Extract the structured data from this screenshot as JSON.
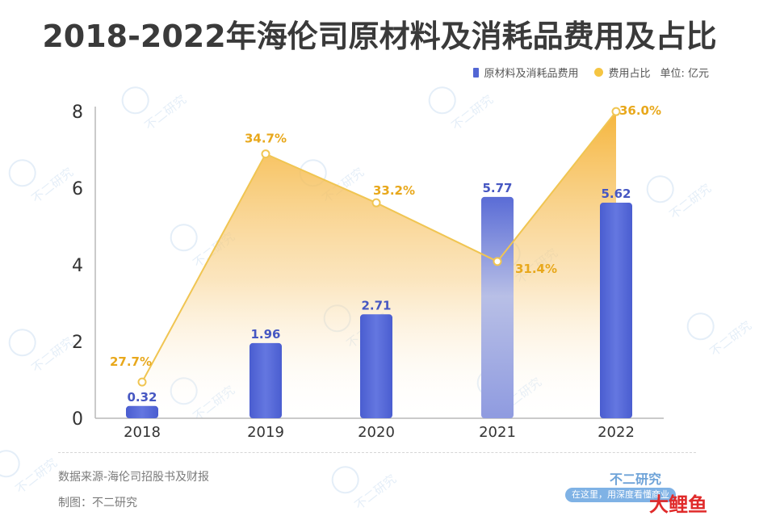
{
  "title": "2018-2022年海伦司原材料及消耗品费用及占比",
  "legend": {
    "bar_label": "原材料及消耗品费用",
    "line_label": "费用占比",
    "unit": "单位: 亿元"
  },
  "colors": {
    "bar": "#5266d4",
    "bar_light": "#aeb8ec",
    "line": "#f0c552",
    "area_top": "#f5b233",
    "pct_text": "#e8a81c",
    "value_text": "#4657c2",
    "axis_text": "#333333"
  },
  "chart_data": {
    "type": "bar",
    "categories": [
      "2018",
      "2019",
      "2020",
      "2021",
      "2022"
    ],
    "ylim": [
      0,
      8
    ],
    "yticks": [
      0,
      2,
      4,
      6,
      8
    ],
    "series": [
      {
        "name": "原材料及消耗品费用",
        "type": "bar",
        "values": [
          0.32,
          1.96,
          2.71,
          5.77,
          5.62
        ],
        "labels": [
          "0.32",
          "1.96",
          "2.71",
          "5.77",
          "5.62"
        ]
      },
      {
        "name": "费用占比",
        "type": "area",
        "values": [
          27.7,
          34.7,
          33.2,
          31.4,
          36.0
        ],
        "labels": [
          "27.7%",
          "34.7%",
          "33.2%",
          "31.4%",
          "36.0%"
        ]
      }
    ]
  },
  "footer": {
    "source": "数据来源-海伦司招股书及财报",
    "credit": "制图：不二研究",
    "brand": "不二研究",
    "slogan": "在这里，用深度看懂商业"
  },
  "watermark": {
    "text": "不二研究"
  },
  "corner_logo": {
    "text": "大鲤鱼"
  }
}
